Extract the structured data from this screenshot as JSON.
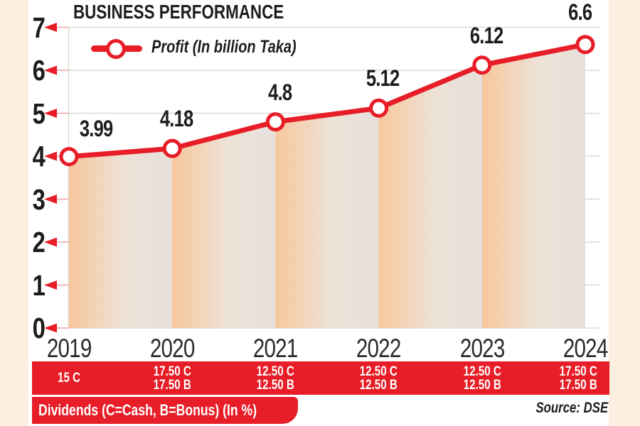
{
  "title": "BUSINESS PERFORMANCE",
  "legend": {
    "label": "Profit (In billion Taka)"
  },
  "source": "Source: DSE",
  "dividends_note": "Dividends (C=Cash, B=Bonus) (In %)",
  "colors": {
    "accent_red": "#e71d27",
    "tick_line_pink": "#f2a2a6",
    "grid_gray": "#dcdad7",
    "band_orange": "#f8c79b",
    "band_gray": "#e7e0da",
    "margin_cream": "#fcefdf",
    "text_black": "#1d1d1b",
    "marker_fill": "#ffffff"
  },
  "chart_data": {
    "type": "line",
    "title": "BUSINESS PERFORMANCE",
    "categories": [
      "2019",
      "2020",
      "2021",
      "2022",
      "2023",
      "2024"
    ],
    "series": [
      {
        "name": "Profit (In billion Taka)",
        "values": [
          3.99,
          4.18,
          4.8,
          5.12,
          6.12,
          6.6
        ]
      }
    ],
    "point_labels": [
      "3.99",
      "4.18",
      "4.8",
      "5.12",
      "6.12",
      "6.6"
    ],
    "xlabel": "",
    "ylabel": "",
    "ylim": [
      0,
      7
    ],
    "y_ticks": [
      0,
      1,
      2,
      3,
      4,
      5,
      6,
      7
    ],
    "grid": true,
    "legend_position": "top-left",
    "area_fill": "vertical peach-to-gray gradient band per year segment",
    "dividends": [
      [
        "15 C"
      ],
      [
        "17.50 C",
        "17.50 B"
      ],
      [
        "12.50 C",
        "12.50 B"
      ],
      [
        "12.50 C",
        "12.50 B"
      ],
      [
        "12.50 C",
        "12.50 B"
      ],
      [
        "17.50 C",
        "17.50 B"
      ]
    ]
  }
}
